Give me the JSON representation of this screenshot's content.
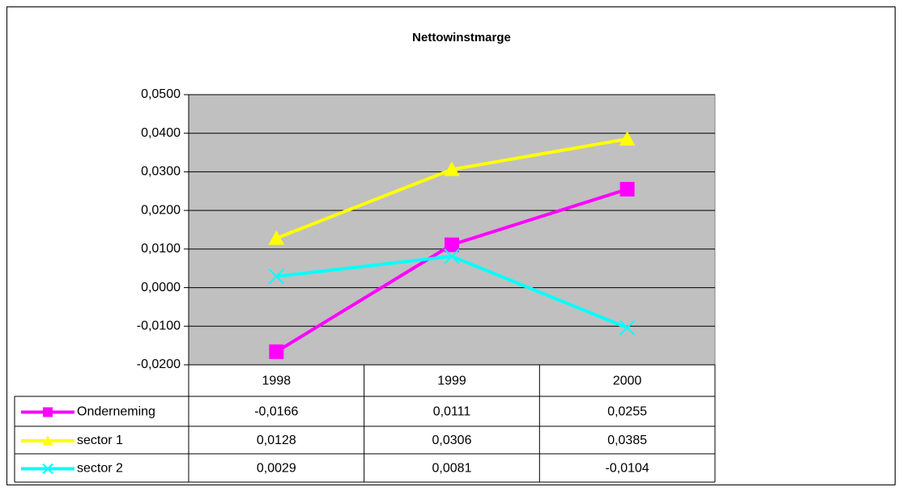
{
  "chart_data": {
    "type": "line",
    "title": "Nettowinstmarge",
    "categories": [
      "1998",
      "1999",
      "2000"
    ],
    "series": [
      {
        "name": "Onderneming",
        "color": "#ff00ff",
        "marker": "square",
        "values": [
          -0.0166,
          0.0111,
          0.0255
        ],
        "value_labels": [
          "-0,0166",
          "0,0111",
          "0,0255"
        ]
      },
      {
        "name": "sector 1",
        "color": "#ffff00",
        "marker": "triangle",
        "values": [
          0.0128,
          0.0306,
          0.0385
        ],
        "value_labels": [
          "0,0128",
          "0,0306",
          "0,0385"
        ]
      },
      {
        "name": "sector 2",
        "color": "#00ffff",
        "marker": "x",
        "values": [
          0.0029,
          0.0081,
          -0.0104
        ],
        "value_labels": [
          "0,0029",
          "0,0081",
          "-0,0104"
        ]
      }
    ],
    "ylim": [
      -0.02,
      0.05
    ],
    "yticks": [
      {
        "value": -0.02,
        "label": "-0,0200"
      },
      {
        "value": -0.01,
        "label": "-0,0100"
      },
      {
        "value": 0,
        "label": "0,0000"
      },
      {
        "value": 0.01,
        "label": "0,0100"
      },
      {
        "value": 0.02,
        "label": "0,0200"
      },
      {
        "value": 0.03,
        "label": "0,0300"
      },
      {
        "value": 0.04,
        "label": "0,0400"
      },
      {
        "value": 0.05,
        "label": "0,0500"
      }
    ],
    "grid": true,
    "plot_background": "#c0c0c0"
  }
}
